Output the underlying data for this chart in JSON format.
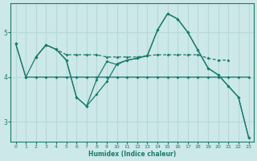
{
  "xlabel": "Humidex (Indice chaleur)",
  "background_color": "#cce8e8",
  "grid_color": "#b8d8d8",
  "line_color": "#1a7a6e",
  "xlim": [
    -0.5,
    23.5
  ],
  "ylim": [
    2.55,
    5.65
  ],
  "yticks": [
    3,
    4,
    5
  ],
  "xticks": [
    0,
    1,
    2,
    3,
    4,
    5,
    6,
    7,
    8,
    9,
    10,
    11,
    12,
    13,
    14,
    15,
    16,
    17,
    18,
    19,
    20,
    21,
    22,
    23
  ],
  "line_flat_x": [
    0,
    1,
    2,
    3,
    4,
    5,
    6,
    7,
    8,
    9,
    10,
    11,
    12,
    13,
    14,
    15,
    16,
    17,
    18,
    19,
    20,
    21,
    22,
    23
  ],
  "line_flat_y": [
    4.75,
    4.0,
    4.0,
    4.0,
    4.0,
    4.0,
    4.0,
    4.0,
    4.0,
    4.0,
    4.0,
    4.0,
    4.0,
    4.0,
    4.0,
    4.0,
    4.0,
    4.0,
    4.0,
    4.0,
    4.0,
    4.0,
    4.0,
    4.0
  ],
  "line_dashed_x": [
    2,
    3,
    4,
    5,
    6,
    7,
    8,
    9,
    10,
    11,
    12,
    13,
    14,
    15,
    16,
    17,
    18,
    19,
    20,
    21
  ],
  "line_dashed_y": [
    4.45,
    4.72,
    4.62,
    4.5,
    4.5,
    4.5,
    4.5,
    4.45,
    4.45,
    4.45,
    4.45,
    4.48,
    4.5,
    4.5,
    4.5,
    4.5,
    4.5,
    4.42,
    4.38,
    4.38
  ],
  "line_dip_x": [
    2,
    3,
    4,
    5,
    6,
    7,
    8,
    9,
    10,
    11,
    12,
    13,
    14,
    15,
    16,
    17,
    18,
    19,
    20,
    21,
    22,
    23
  ],
  "line_dip_y": [
    4.45,
    4.72,
    4.62,
    4.38,
    3.55,
    3.35,
    3.62,
    3.9,
    4.3,
    4.38,
    4.42,
    4.48,
    5.05,
    5.42,
    5.3,
    5.0,
    4.6,
    4.2,
    4.05,
    3.8,
    3.55,
    2.65
  ],
  "line_diag_x": [
    0,
    1,
    2,
    3,
    4,
    5,
    6,
    7,
    8,
    9,
    10,
    11,
    12,
    13,
    14,
    15,
    16,
    17,
    18,
    19,
    20,
    21,
    22,
    23
  ],
  "line_diag_y": [
    4.75,
    4.0,
    4.45,
    4.72,
    4.62,
    4.38,
    3.55,
    3.35,
    3.95,
    4.35,
    4.28,
    4.38,
    4.42,
    4.48,
    5.05,
    5.42,
    5.3,
    5.0,
    4.6,
    4.2,
    4.05,
    3.8,
    3.55,
    2.65
  ]
}
